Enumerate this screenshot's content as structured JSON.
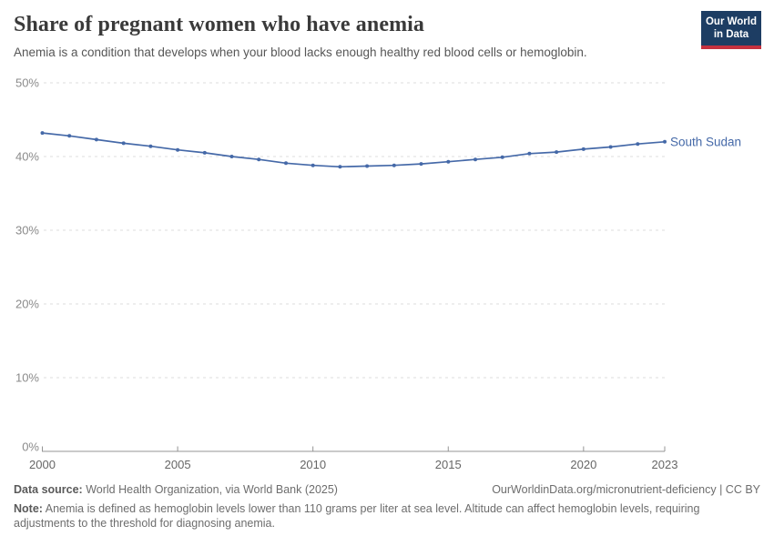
{
  "header": {
    "title": "Share of pregnant women who have anemia",
    "subtitle": "Anemia is a condition that develops when your blood lacks enough healthy red blood cells or hemoglobin.",
    "logo": {
      "line1": "Our World",
      "line2": "in Data",
      "bg_color": "#1d3d63",
      "accent_color": "#c5313f"
    }
  },
  "chart_data": {
    "type": "line",
    "title": "Share of pregnant women who have anemia",
    "x": [
      2000,
      2001,
      2002,
      2003,
      2004,
      2005,
      2006,
      2007,
      2008,
      2009,
      2010,
      2011,
      2012,
      2013,
      2014,
      2015,
      2016,
      2017,
      2018,
      2019,
      2020,
      2021,
      2022,
      2023
    ],
    "series": [
      {
        "name": "South Sudan",
        "color": "#4569a8",
        "values": [
          43.2,
          42.8,
          42.3,
          41.8,
          41.4,
          40.9,
          40.5,
          40.0,
          39.6,
          39.1,
          38.8,
          38.6,
          38.7,
          38.8,
          39.0,
          39.3,
          39.6,
          39.9,
          40.4,
          40.6,
          41.0,
          41.3,
          41.7,
          42.0
        ]
      }
    ],
    "xlabel": "",
    "ylabel": "",
    "ylim": [
      0,
      50
    ],
    "yticks": [
      0,
      10,
      20,
      30,
      40,
      50
    ],
    "ytick_labels": [
      "0%",
      "10%",
      "20%",
      "30%",
      "40%",
      "50%"
    ],
    "xticks": [
      2000,
      2005,
      2010,
      2015,
      2020,
      2023
    ],
    "xtick_labels": [
      "2000",
      "2005",
      "2010",
      "2015",
      "2020",
      "2023"
    ],
    "grid": "horizontal-dashed",
    "legend_position": "end-of-line-label",
    "colors": {
      "gridline": "#dcdcdc",
      "axis": "#949494",
      "ytick_label": "#8b8b8b",
      "xtick_label": "#666666"
    }
  },
  "footer": {
    "datasource_label": "Data source:",
    "datasource_value": " World Health Organization, via World Bank (2025)",
    "link": "OurWorldinData.org/micronutrient-deficiency | CC BY",
    "note_label": "Note:",
    "note_value": " Anemia is defined as hemoglobin levels lower than 110 grams per liter at sea level. Altitude can affect hemoglobin levels, requiring adjustments to the threshold for diagnosing anemia."
  }
}
